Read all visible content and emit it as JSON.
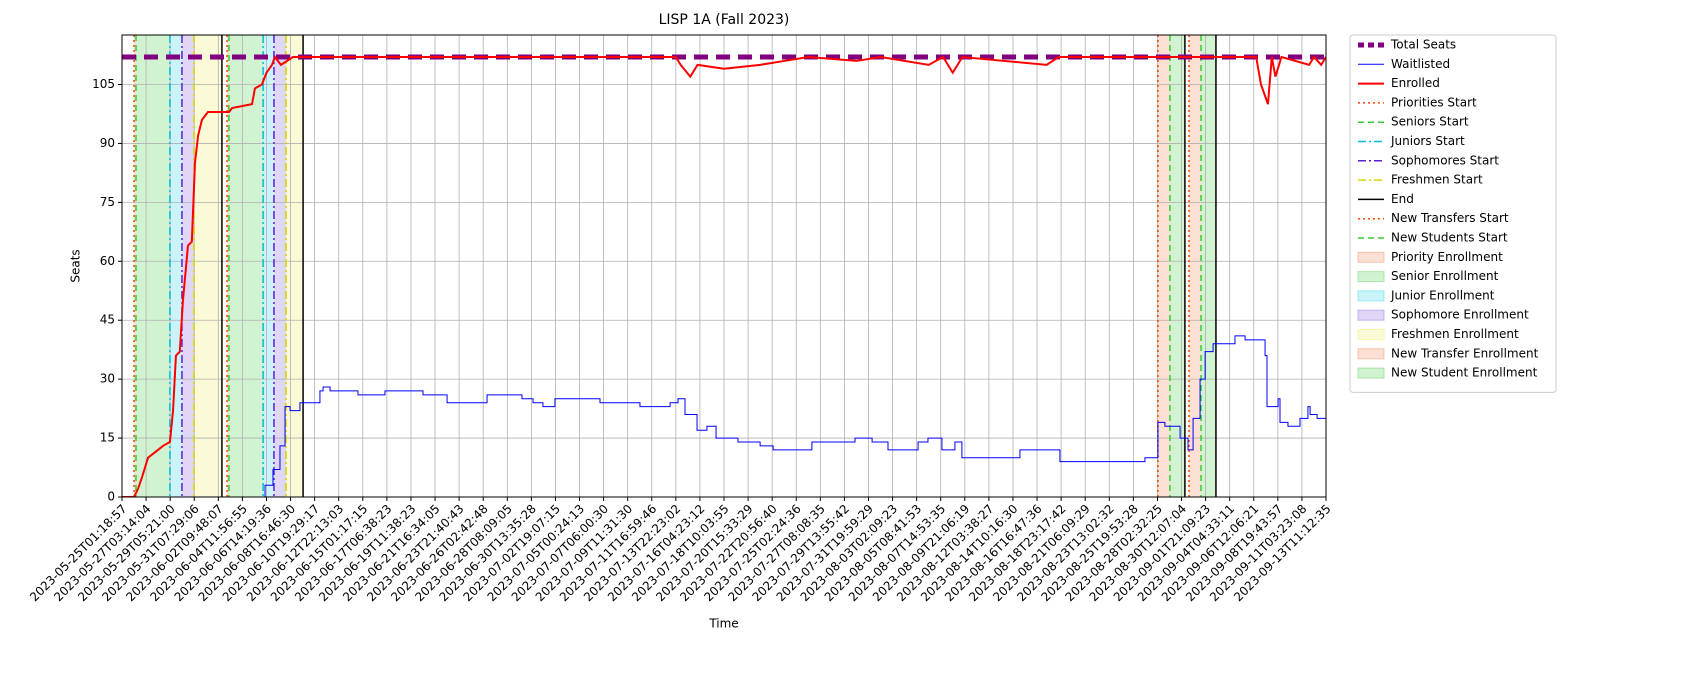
{
  "chart_data": {
    "type": "line",
    "title": "LISP 1A (Fall 2023)",
    "x_label": "Time",
    "y_label": "Seats",
    "grid": true,
    "legend": "outside right",
    "xlim": [
      0,
      50
    ],
    "ylim": [
      0,
      117.6
    ],
    "yticks": [
      0,
      15,
      30,
      45,
      60,
      75,
      90,
      105
    ],
    "xticks": [
      {
        "value": 0,
        "label": "2023-05-25T01:18:57"
      },
      {
        "value": 1,
        "label": "2023-05-27T03:14:04"
      },
      {
        "value": 2,
        "label": "2023-05-29T05:21:00"
      },
      {
        "value": 3,
        "label": "2023-05-31T07:29:06"
      },
      {
        "value": 4,
        "label": "2023-06-02T09:48:07"
      },
      {
        "value": 5,
        "label": "2023-06-04T11:56:55"
      },
      {
        "value": 6,
        "label": "2023-06-06T14:19:36"
      },
      {
        "value": 7,
        "label": "2023-06-08T16:46:30"
      },
      {
        "value": 8,
        "label": "2023-06-10T19:29:17"
      },
      {
        "value": 9,
        "label": "2023-06-12T22:13:03"
      },
      {
        "value": 10,
        "label": "2023-06-15T01:17:15"
      },
      {
        "value": 11,
        "label": "2023-06-17T06:38:23"
      },
      {
        "value": 12,
        "label": "2023-06-19T11:38:23"
      },
      {
        "value": 13,
        "label": "2023-06-21T16:34:05"
      },
      {
        "value": 14,
        "label": "2023-06-23T21:40:43"
      },
      {
        "value": 15,
        "label": "2023-06-26T02:42:48"
      },
      {
        "value": 16,
        "label": "2023-06-28T08:09:05"
      },
      {
        "value": 17,
        "label": "2023-06-30T13:35:28"
      },
      {
        "value": 18,
        "label": "2023-07-02T19:07:15"
      },
      {
        "value": 19,
        "label": "2023-07-05T00:24:13"
      },
      {
        "value": 20,
        "label": "2023-07-07T06:00:30"
      },
      {
        "value": 21,
        "label": "2023-07-09T11:31:30"
      },
      {
        "value": 22,
        "label": "2023-07-11T16:59:46"
      },
      {
        "value": 23,
        "label": "2023-07-13T22:23:02"
      },
      {
        "value": 24,
        "label": "2023-07-16T04:23:12"
      },
      {
        "value": 25,
        "label": "2023-07-18T10:03:55"
      },
      {
        "value": 26,
        "label": "2023-07-20T15:33:29"
      },
      {
        "value": 27,
        "label": "2023-07-22T20:56:40"
      },
      {
        "value": 28,
        "label": "2023-07-25T02:24:36"
      },
      {
        "value": 29,
        "label": "2023-07-27T08:08:35"
      },
      {
        "value": 30,
        "label": "2023-07-29T13:55:42"
      },
      {
        "value": 31,
        "label": "2023-07-31T19:59:29"
      },
      {
        "value": 32,
        "label": "2023-08-03T02:09:23"
      },
      {
        "value": 33,
        "label": "2023-08-05T08:41:53"
      },
      {
        "value": 34,
        "label": "2023-08-07T14:53:35"
      },
      {
        "value": 35,
        "label": "2023-08-09T21:06:19"
      },
      {
        "value": 36,
        "label": "2023-08-12T03:38:27"
      },
      {
        "value": 37,
        "label": "2023-08-14T10:16:30"
      },
      {
        "value": 38,
        "label": "2023-08-16T16:47:36"
      },
      {
        "value": 39,
        "label": "2023-08-18T23:17:42"
      },
      {
        "value": 40,
        "label": "2023-08-21T06:09:29"
      },
      {
        "value": 41,
        "label": "2023-08-23T13:02:32"
      },
      {
        "value": 42,
        "label": "2023-08-25T19:53:28"
      },
      {
        "value": 43,
        "label": "2023-08-28T02:32:25"
      },
      {
        "value": 44,
        "label": "2023-08-30T12:07:04"
      },
      {
        "value": 45,
        "label": "2023-09-01T21:09:23"
      },
      {
        "value": 46,
        "label": "2023-09-04T04:33:11"
      },
      {
        "value": 47,
        "label": "2023-09-06T12:06:21"
      },
      {
        "value": 48,
        "label": "2023-09-08T19:43:57"
      },
      {
        "value": 49,
        "label": "2023-09-11T03:23:08"
      },
      {
        "value": 50,
        "label": "2023-09-13T11:12:35"
      }
    ],
    "series": [
      {
        "name": "Total Seats",
        "color": "#800080",
        "style": "dashed",
        "linewidth": 5,
        "drawstyle": "line",
        "x": [
          0,
          50
        ],
        "values": [
          112,
          112
        ]
      },
      {
        "name": "Waitlisted",
        "color": "#0000ff",
        "style": "solid",
        "linewidth": 1,
        "drawstyle": "steps",
        "x": [
          5.86,
          5.94,
          6.27,
          6.56,
          6.77,
          6.98,
          7.39,
          8.22,
          8.35,
          8.64,
          9.8,
          10.92,
          12.5,
          13.5,
          15.16,
          16.61,
          17.07,
          17.48,
          17.98,
          19.85,
          21.51,
          22.76,
          23.09,
          23.38,
          23.88,
          24.29,
          24.67,
          25.58,
          26.5,
          27.04,
          28.65,
          30.44,
          31.15,
          31.81,
          33.06,
          33.47,
          34.05,
          34.59,
          34.88,
          37.29,
          38.95,
          42.48,
          43.02,
          43.31,
          43.94,
          44.27,
          44.48,
          44.77,
          44.98,
          45.31,
          46.22,
          46.64,
          47.47,
          47.55,
          48.01,
          48.09,
          48.42,
          48.92,
          49.25,
          49.34,
          49.63,
          50
        ],
        "values": [
          0,
          3,
          7,
          13,
          23,
          22,
          24,
          27,
          28,
          27,
          26,
          27,
          26,
          24,
          26,
          25,
          24,
          23,
          25,
          24,
          23,
          24,
          25,
          21,
          17,
          18,
          15,
          14,
          13,
          12,
          14,
          15,
          14,
          12,
          14,
          15,
          12,
          14,
          10,
          12,
          9,
          10,
          19,
          18,
          15,
          12,
          20,
          30,
          37,
          39,
          41,
          40,
          36,
          23,
          25,
          19,
          18,
          20,
          23,
          21,
          20,
          20
        ]
      },
      {
        "name": "Enrolled",
        "color": "#ff0000",
        "style": "solid",
        "linewidth": 2,
        "drawstyle": "line",
        "x": [
          0,
          0.5,
          0.66,
          0.83,
          1.08,
          1.29,
          1.7,
          1.99,
          2.12,
          2.24,
          2.4,
          2.53,
          2.74,
          2.9,
          3.03,
          3.16,
          3.32,
          3.57,
          4.45,
          4.57,
          5.4,
          5.52,
          5.81,
          6.0,
          6.23,
          6.35,
          6.6,
          7.1,
          23.0,
          23.2,
          23.6,
          23.9,
          25.0,
          26.5,
          27.5,
          28.5,
          30.5,
          31.5,
          33.5,
          34.1,
          34.5,
          34.9,
          38.4,
          38.9,
          47.1,
          47.3,
          47.59,
          47.75,
          47.9,
          48.15,
          49.3,
          49.5,
          49.8,
          50
        ],
        "values": [
          0,
          0,
          2,
          5,
          10,
          11,
          13,
          14,
          22,
          36,
          37,
          50,
          64,
          65,
          85,
          92,
          96,
          98,
          98,
          99,
          100,
          104,
          105,
          108,
          110,
          112,
          110,
          112,
          112,
          110,
          107,
          110,
          109,
          110,
          111,
          112,
          111,
          112,
          110,
          112,
          108,
          112,
          110,
          112,
          112,
          105,
          100,
          112,
          107,
          112,
          110,
          112,
          110,
          112
        ]
      }
    ],
    "vlines": [
      {
        "name": "Priorities Start",
        "color": "#ff4500",
        "style": "dotted",
        "x": [
          0.5,
          4.36
        ]
      },
      {
        "name": "Seniors Start",
        "color": "#32cd32",
        "style": "dashed",
        "x": [
          0.58,
          4.44
        ]
      },
      {
        "name": "Juniors Start",
        "color": "#00bcd4",
        "style": "dashdot",
        "x": [
          1.99,
          5.86
        ]
      },
      {
        "name": "Sophomores Start",
        "color": "#5b1fd6",
        "style": "dashdot",
        "x": [
          2.49,
          6.31
        ]
      },
      {
        "name": "Freshmen Start",
        "color": "#d4d400",
        "style": "dashdot",
        "x": [
          2.99,
          6.81
        ]
      },
      {
        "name": "End",
        "color": "#000000",
        "style": "solid",
        "x": [
          4.15,
          7.52,
          44.14,
          45.43
        ]
      },
      {
        "name": "New Transfers Start",
        "color": "#ff4500",
        "style": "dotted",
        "x": [
          43.02,
          44.31
        ]
      },
      {
        "name": "New Students Start",
        "color": "#32cd32",
        "style": "dashed",
        "x": [
          43.52,
          44.81
        ]
      }
    ],
    "spans": [
      {
        "name": "Priority Enrollment",
        "color": "#f4a582",
        "ranges": [
          [
            0.5,
            0.58
          ],
          [
            4.36,
            4.44
          ]
        ]
      },
      {
        "name": "Senior Enrollment",
        "color": "#7ddc7d",
        "ranges": [
          [
            0.58,
            1.99
          ],
          [
            4.44,
            5.86
          ]
        ]
      },
      {
        "name": "Junior Enrollment",
        "color": "#66e0ee",
        "ranges": [
          [
            1.99,
            2.49
          ],
          [
            5.86,
            6.31
          ]
        ]
      },
      {
        "name": "Sophomore Enrollment",
        "color": "#a58ae6",
        "ranges": [
          [
            2.49,
            2.99
          ],
          [
            6.31,
            6.81
          ]
        ]
      },
      {
        "name": "Freshmen Enrollment",
        "color": "#f2f28a",
        "ranges": [
          [
            2.99,
            4.15
          ],
          [
            6.81,
            7.52
          ]
        ]
      },
      {
        "name": "New Transfer Enrollment",
        "color": "#f4a582",
        "ranges": [
          [
            43.02,
            43.52
          ],
          [
            44.31,
            44.81
          ]
        ]
      },
      {
        "name": "New Student Enrollment",
        "color": "#7ddc7d",
        "ranges": [
          [
            43.52,
            44.14
          ],
          [
            44.81,
            45.43
          ]
        ]
      }
    ],
    "span_alpha": 0.35
  }
}
